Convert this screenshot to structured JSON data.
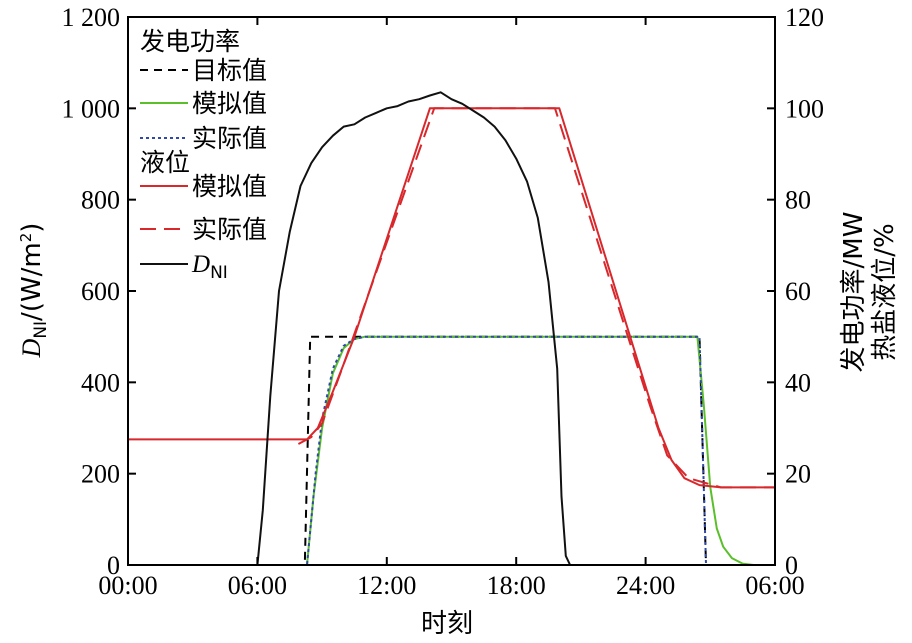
{
  "chart_data": {
    "type": "line",
    "title": "",
    "xlabel": "时刻",
    "ylabel_left_main": "D",
    "ylabel_left_sub": "NI",
    "ylabel_left_unit": "/(W/m",
    "ylabel_left_sup": "2",
    "ylabel_left_close": ")",
    "ylabel_right_1": "发电功率/MW",
    "ylabel_right_2": "热盐液位/%",
    "x_range_hours": [
      0,
      30
    ],
    "x_ticks": [
      {
        "h": 0,
        "label": "00:00"
      },
      {
        "h": 6,
        "label": "06:00"
      },
      {
        "h": 12,
        "label": "12:00"
      },
      {
        "h": 18,
        "label": "18:00"
      },
      {
        "h": 24,
        "label": "24:00"
      },
      {
        "h": 30,
        "label": "06:00"
      }
    ],
    "y_left_range": [
      0,
      1200
    ],
    "y_left_ticks": [
      {
        "v": 0,
        "label": "0"
      },
      {
        "v": 200,
        "label": "200"
      },
      {
        "v": 400,
        "label": "400"
      },
      {
        "v": 600,
        "label": "600"
      },
      {
        "v": 800,
        "label": "800"
      },
      {
        "v": 1000,
        "label": "1 000"
      },
      {
        "v": 1200,
        "label": "1 200"
      }
    ],
    "y_right_range": [
      0,
      120
    ],
    "y_right_ticks": [
      {
        "v": 0,
        "label": "0"
      },
      {
        "v": 20,
        "label": "20"
      },
      {
        "v": 40,
        "label": "40"
      },
      {
        "v": 60,
        "label": "60"
      },
      {
        "v": 80,
        "label": "80"
      },
      {
        "v": 100,
        "label": "100"
      },
      {
        "v": 120,
        "label": "120"
      }
    ],
    "legend": {
      "group1": "发电功率",
      "group2": "液位",
      "items": [
        {
          "key": "power_target",
          "label": "目标值"
        },
        {
          "key": "power_sim",
          "label": "模拟值"
        },
        {
          "key": "power_actual",
          "label": "实际值"
        },
        {
          "key": "level_sim",
          "label": "模拟值"
        },
        {
          "key": "level_actual",
          "label": "实际值"
        },
        {
          "key": "dni",
          "label_main": "D",
          "label_sub": "NI"
        }
      ]
    },
    "series": [
      {
        "key": "power_target",
        "axis": "right",
        "color": "#000000",
        "dash": "8,6",
        "points": [
          [
            0,
            0
          ],
          [
            8.2,
            0
          ],
          [
            8.45,
            50
          ],
          [
            26.5,
            50
          ],
          [
            26.8,
            0
          ],
          [
            30,
            0
          ]
        ]
      },
      {
        "key": "power_sim",
        "axis": "right",
        "color": "#5abf2a",
        "dash": "",
        "points": [
          [
            0,
            0
          ],
          [
            8.3,
            0
          ],
          [
            8.6,
            15
          ],
          [
            9,
            30
          ],
          [
            9.5,
            42
          ],
          [
            10,
            47.5
          ],
          [
            10.5,
            49.5
          ],
          [
            11,
            50
          ],
          [
            26.4,
            50
          ],
          [
            26.7,
            35
          ],
          [
            27,
            17
          ],
          [
            27.3,
            8
          ],
          [
            27.6,
            4
          ],
          [
            28,
            1.5
          ],
          [
            28.5,
            0.3
          ],
          [
            29,
            0
          ],
          [
            30,
            0
          ]
        ]
      },
      {
        "key": "power_actual",
        "axis": "right",
        "color": "#3048a8",
        "dash": "3,3",
        "points": [
          [
            0,
            0
          ],
          [
            8.3,
            0
          ],
          [
            8.7,
            20
          ],
          [
            9,
            32
          ],
          [
            9.5,
            43
          ],
          [
            10,
            48
          ],
          [
            10.5,
            49.5
          ],
          [
            11,
            50
          ],
          [
            26.5,
            50
          ],
          [
            26.8,
            0
          ],
          [
            30,
            0
          ]
        ]
      },
      {
        "key": "level_sim",
        "axis": "right",
        "color": "#d8282c",
        "dash": "",
        "points": [
          [
            0,
            27.5
          ],
          [
            8.3,
            27.5
          ],
          [
            8.8,
            30
          ],
          [
            9.5,
            38
          ],
          [
            10.5,
            50
          ],
          [
            14,
            100
          ],
          [
            20,
            100
          ],
          [
            24.6,
            30
          ],
          [
            25.2,
            23
          ],
          [
            25.8,
            19
          ],
          [
            26.5,
            17.5
          ],
          [
            27.5,
            17
          ],
          [
            30,
            17
          ]
        ]
      },
      {
        "key": "level_actual",
        "axis": "right",
        "color": "#d8282c",
        "dash": "16,8",
        "points": [
          [
            7.9,
            26.5
          ],
          [
            8.5,
            28
          ],
          [
            9,
            31
          ],
          [
            10,
            44
          ],
          [
            14.2,
            100
          ],
          [
            19.8,
            100
          ],
          [
            24.2,
            35
          ],
          [
            25,
            24
          ],
          [
            26,
            19
          ],
          [
            27.5,
            17
          ],
          [
            30,
            17
          ]
        ]
      },
      {
        "key": "dni",
        "axis": "left",
        "color": "#111111",
        "dash": "",
        "points": [
          [
            0,
            0
          ],
          [
            6,
            0
          ],
          [
            6.25,
            120
          ],
          [
            6.6,
            370
          ],
          [
            7,
            600
          ],
          [
            7.5,
            730
          ],
          [
            8,
            830
          ],
          [
            8.5,
            880
          ],
          [
            9,
            915
          ],
          [
            9.5,
            940
          ],
          [
            10,
            960
          ],
          [
            10.5,
            965
          ],
          [
            11,
            980
          ],
          [
            11.5,
            990
          ],
          [
            12,
            1000
          ],
          [
            12.5,
            1005
          ],
          [
            13,
            1015
          ],
          [
            13.5,
            1020
          ],
          [
            14,
            1028
          ],
          [
            14.5,
            1035
          ],
          [
            15,
            1020
          ],
          [
            15.5,
            1010
          ],
          [
            16,
            995
          ],
          [
            16.5,
            980
          ],
          [
            17,
            960
          ],
          [
            17.5,
            930
          ],
          [
            18,
            890
          ],
          [
            18.5,
            840
          ],
          [
            19,
            760
          ],
          [
            19.5,
            620
          ],
          [
            19.9,
            430
          ],
          [
            20.1,
            150
          ],
          [
            20.3,
            20
          ],
          [
            20.5,
            0
          ],
          [
            30,
            0
          ]
        ]
      }
    ]
  }
}
